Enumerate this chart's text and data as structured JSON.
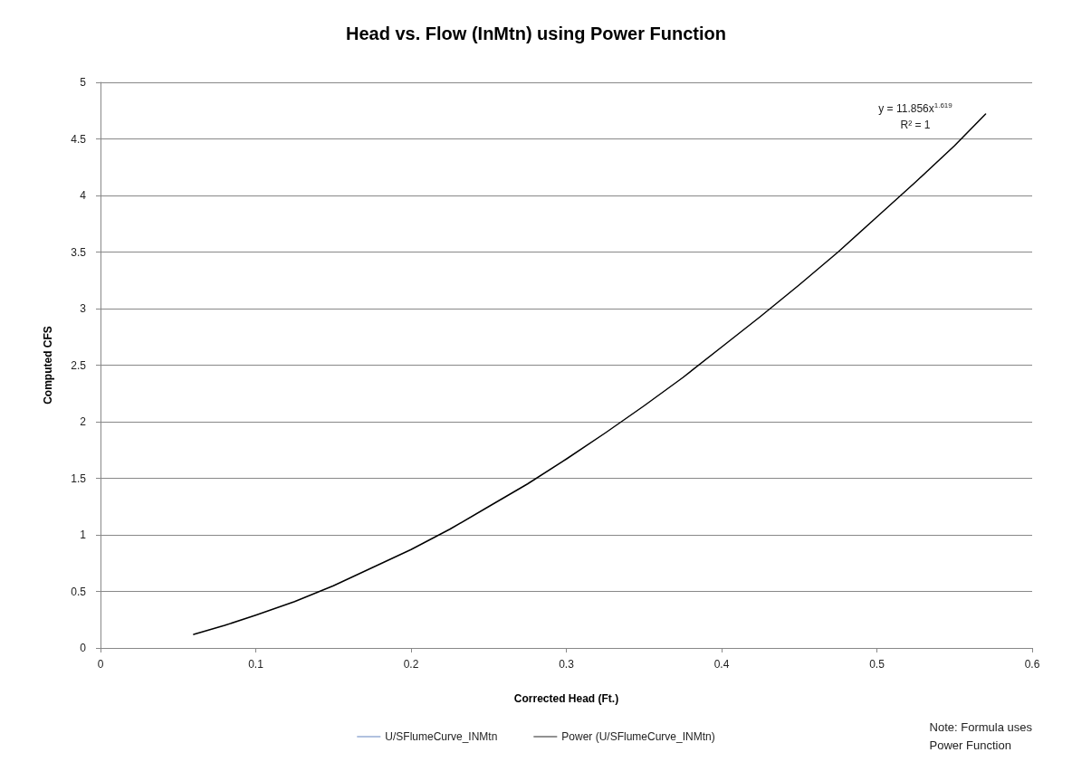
{
  "chart_data": {
    "type": "line",
    "title": "Head vs. Flow (InMtn) using Power Function",
    "xlabel": "Corrected Head (Ft.)",
    "ylabel": "Computed CFS",
    "x": [
      0.06,
      0.08,
      0.1,
      0.125,
      0.15,
      0.175,
      0.2,
      0.225,
      0.25,
      0.275,
      0.3,
      0.325,
      0.35,
      0.375,
      0.4,
      0.425,
      0.45,
      0.475,
      0.5,
      0.525,
      0.55,
      0.57
    ],
    "series": [
      {
        "name": "U/SFlumeCurve_INMtn",
        "color": "#4a6fb5",
        "values": [
          null,
          null,
          null,
          null,
          null,
          null,
          null,
          null,
          null,
          null,
          null,
          null,
          null,
          null,
          null,
          null,
          null,
          null,
          null,
          null,
          null,
          null
        ]
      },
      {
        "name": "Power (U/SFlumeCurve_INMtn)",
        "color": "#000000",
        "values": [
          0.12,
          0.2,
          0.29,
          0.41,
          0.55,
          0.71,
          0.87,
          1.05,
          1.25,
          1.45,
          1.67,
          1.9,
          2.14,
          2.39,
          2.66,
          2.93,
          3.21,
          3.5,
          3.81,
          4.12,
          4.44,
          4.72
        ]
      }
    ],
    "xlim": [
      0,
      0.6
    ],
    "xticks": [
      0,
      0.1,
      0.2,
      0.3,
      0.4,
      0.5,
      0.6
    ],
    "ylim": [
      0,
      5
    ],
    "yticks": [
      0,
      0.5,
      1,
      1.5,
      2,
      2.5,
      3,
      3.5,
      4,
      4.5,
      5
    ],
    "grid": "y",
    "legend": "bottom",
    "marker": "none",
    "line_style": "solid",
    "annotations": [
      "y = 11.856x$^{1.619}$",
      "R² = 1",
      "Note: Formula uses\nPower Function"
    ]
  }
}
